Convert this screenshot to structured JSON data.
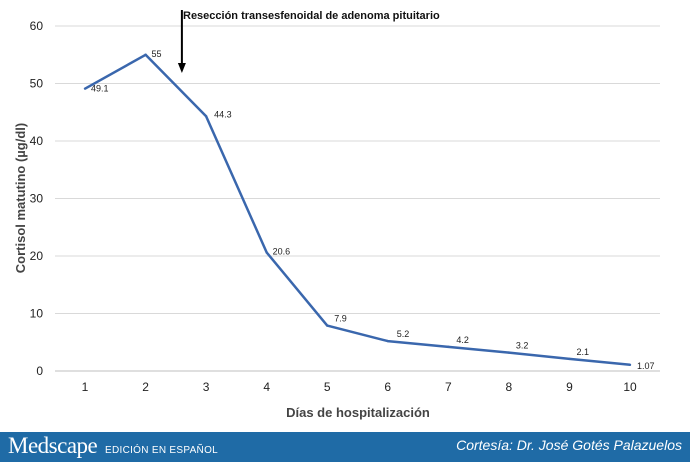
{
  "chart_data": {
    "type": "line",
    "x": [
      1,
      2,
      3,
      4,
      5,
      6,
      7,
      8,
      9,
      10
    ],
    "series": [
      {
        "values": [
          49.1,
          55,
          44.3,
          20.6,
          7.9,
          5.2,
          4.2,
          3.2,
          2.1,
          1.07
        ]
      }
    ],
    "data_labels": [
      "49.1",
      "55",
      "44.3",
      "20.6",
      "7.9",
      "5.2",
      "4.2",
      "3.2",
      "2.1",
      "1.07"
    ],
    "xlabel": "Días de hospitalización",
    "ylabel": "Cortisol matutino (µg/dl)",
    "xticks": [
      "1",
      "2",
      "3",
      "4",
      "5",
      "6",
      "7",
      "8",
      "9",
      "10"
    ],
    "yticks": [
      "0",
      "10",
      "20",
      "30",
      "40",
      "50",
      "60"
    ],
    "ylim": [
      0,
      60
    ],
    "grid": "horizontal",
    "legend": "none",
    "line_color": "#3a67ad",
    "annotation": {
      "text": "Resección transesfenoidal de adenoma pituitario",
      "x": 2.6
    }
  },
  "footer": {
    "brand": "Medscape",
    "edition": "EDICIÓN EN ESPAÑOL",
    "credit": "Cortesía: Dr. José Gotés Palazuelos"
  },
  "colors": {
    "footer_background": "#1f6ba6",
    "grid": "#d9d9d9"
  }
}
